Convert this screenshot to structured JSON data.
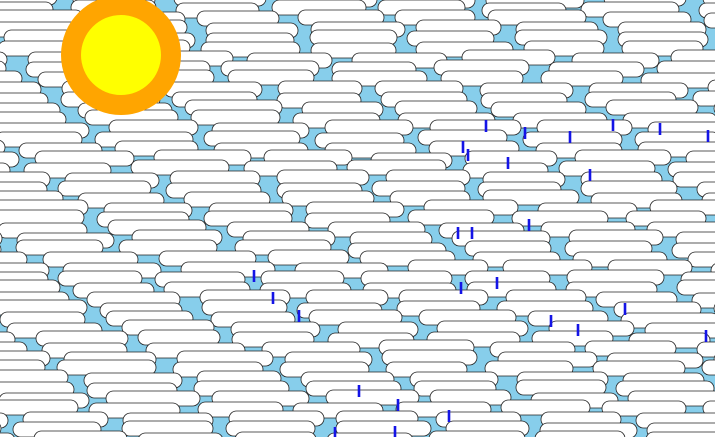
{
  "scene": {
    "sky_color": "#87CEEB",
    "cloud_fill": "#FFFFFF",
    "cloud_stroke": "#222222",
    "rain_color": "#1414E6",
    "sun_outer_color": "#FFA500",
    "sun_inner_color": "#FFFF00"
  }
}
